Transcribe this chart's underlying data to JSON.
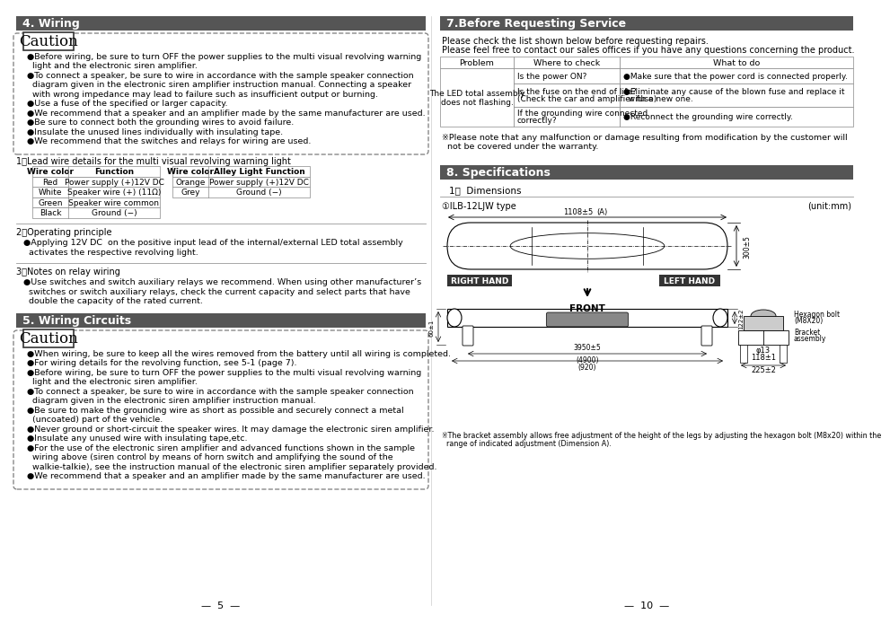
{
  "bg_color": "#ffffff",
  "header_color": "#555555",
  "header_text_color": "#ffffff",
  "left_col": {
    "section4_title": "4. Wiring",
    "caution1_bullets": [
      "●Before wiring, be sure to turn OFF the power supplies to the multi visual revolving warning\n  light and the electronic siren amplifier.",
      "●To connect a speaker, be sure to wire in accordance with the sample speaker connection\n  diagram given in the electronic siren amplifier instruction manual. Connecting a speaker\n  with wrong impedance may lead to failure such as insufficient output or burning.",
      "●Use a fuse of the specified or larger capacity.",
      "●We recommend that a speaker and an amplifier made by the same manufacturer are used.",
      "●Be sure to connect both the grounding wires to avoid failure.",
      "●Insulate the unused lines individually with insulating tape.",
      "●We recommend that the switches and relays for wiring are used."
    ],
    "table1_heading": "1）Lead wire details for the multi visual revolving warning light",
    "table1_left_headers": [
      "Wire color",
      "Function"
    ],
    "table1_left_rows": [
      [
        "Red",
        "Power supply (+)12V DC"
      ],
      [
        "White",
        "Speaker wire (+) (11Ω)"
      ],
      [
        "Green",
        "Speaker wire common"
      ],
      [
        "Black",
        "Ground (−)"
      ]
    ],
    "table1_right_headers": [
      "Wire color",
      "Alley Light Function"
    ],
    "table1_right_rows": [
      [
        "Orange",
        "Power supply (+)12V DC"
      ],
      [
        "Grey",
        "Ground (−)"
      ]
    ],
    "section2_title": "2）Operating principle",
    "section2_text": "●Applying 12V DC  on the positive input lead of the internal/external LED total assembly\n  activates the respective revolving light.",
    "section3_title": "3）Notes on relay wiring",
    "section3_text": "●Use switches and switch auxiliary relays we recommend. When using other manufacturer’s\n  switches or switch auxiliary relays, check the current capacity and select parts that have\n  double the capacity of the rated current.",
    "section5_title": "5. Wiring Circuits",
    "caution2_bullets": [
      "●When wiring, be sure to keep all the wires removed from the battery until all wiring is completed.",
      "●For wiring details for the revolving function, see 5-1 (page 7).",
      "●Before wiring, be sure to turn OFF the power supplies to the multi visual revolving warning\n  light and the electronic siren amplifier.",
      "●To connect a speaker, be sure to wire in accordance with the sample speaker connection\n  diagram given in the electronic siren amplifier instruction manual.",
      "●Be sure to make the grounding wire as short as possible and securely connect a metal\n  (uncoated) part of the vehicle.",
      "●Never ground or short-circuit the speaker wires. It may damage the electronic siren amplifier.",
      "●Insulate any unused wire with insulating tape,etc.",
      "●For the use of the electronic siren amplifier and advanced functions shown in the sample\n  wiring above (siren control by means of horn switch and amplifying the sound of the\n  walkie-talkie), see the instruction manual of the electronic siren amplifier separately provided.",
      "●We recommend that a speaker and an amplifier made by the same manufacturer are used."
    ],
    "page_number": "5"
  },
  "right_col": {
    "section7_title": "7.Before Requesting Service",
    "intro_text1": "Please check the list shown below before requesting repairs.",
    "intro_text2": "Please feel free to contact our sales offices if you have any questions concerning the product.",
    "table2_headers": [
      "Problem",
      "Where to check",
      "What to do"
    ],
    "where_checks": [
      "Is the power ON?",
      "Is the fuse on the end of life?\n(Check the car and amplifier fuse)",
      "If the grounding wire connected\ncorrectly?"
    ],
    "what_todos": [
      "●Make sure that the power cord is connected properly.",
      "●Eliminate any cause of the blown fuse and replace it\n  with a new one.",
      "●Reconnect the grounding wire correctly."
    ],
    "problem_text": "The LED total assembly\ndoes not flashing.",
    "warranty_note": "※Please note that any malfunction or damage resulting from modification by the customer will\n  not be covered under the warranty.",
    "section8_title": "8. Specifications",
    "dim_title": "1）  Dimensions",
    "dim_subtitle": "①ILB-12LJW type",
    "dim_unit": "(unit:mm)",
    "bracket_note": "※The bracket assembly allows free adjustment of the height of the legs by adjusting the hexagon bolt (M8x20) within the\n  range of indicated adjustment (Dimension A).",
    "page_number": "10"
  }
}
